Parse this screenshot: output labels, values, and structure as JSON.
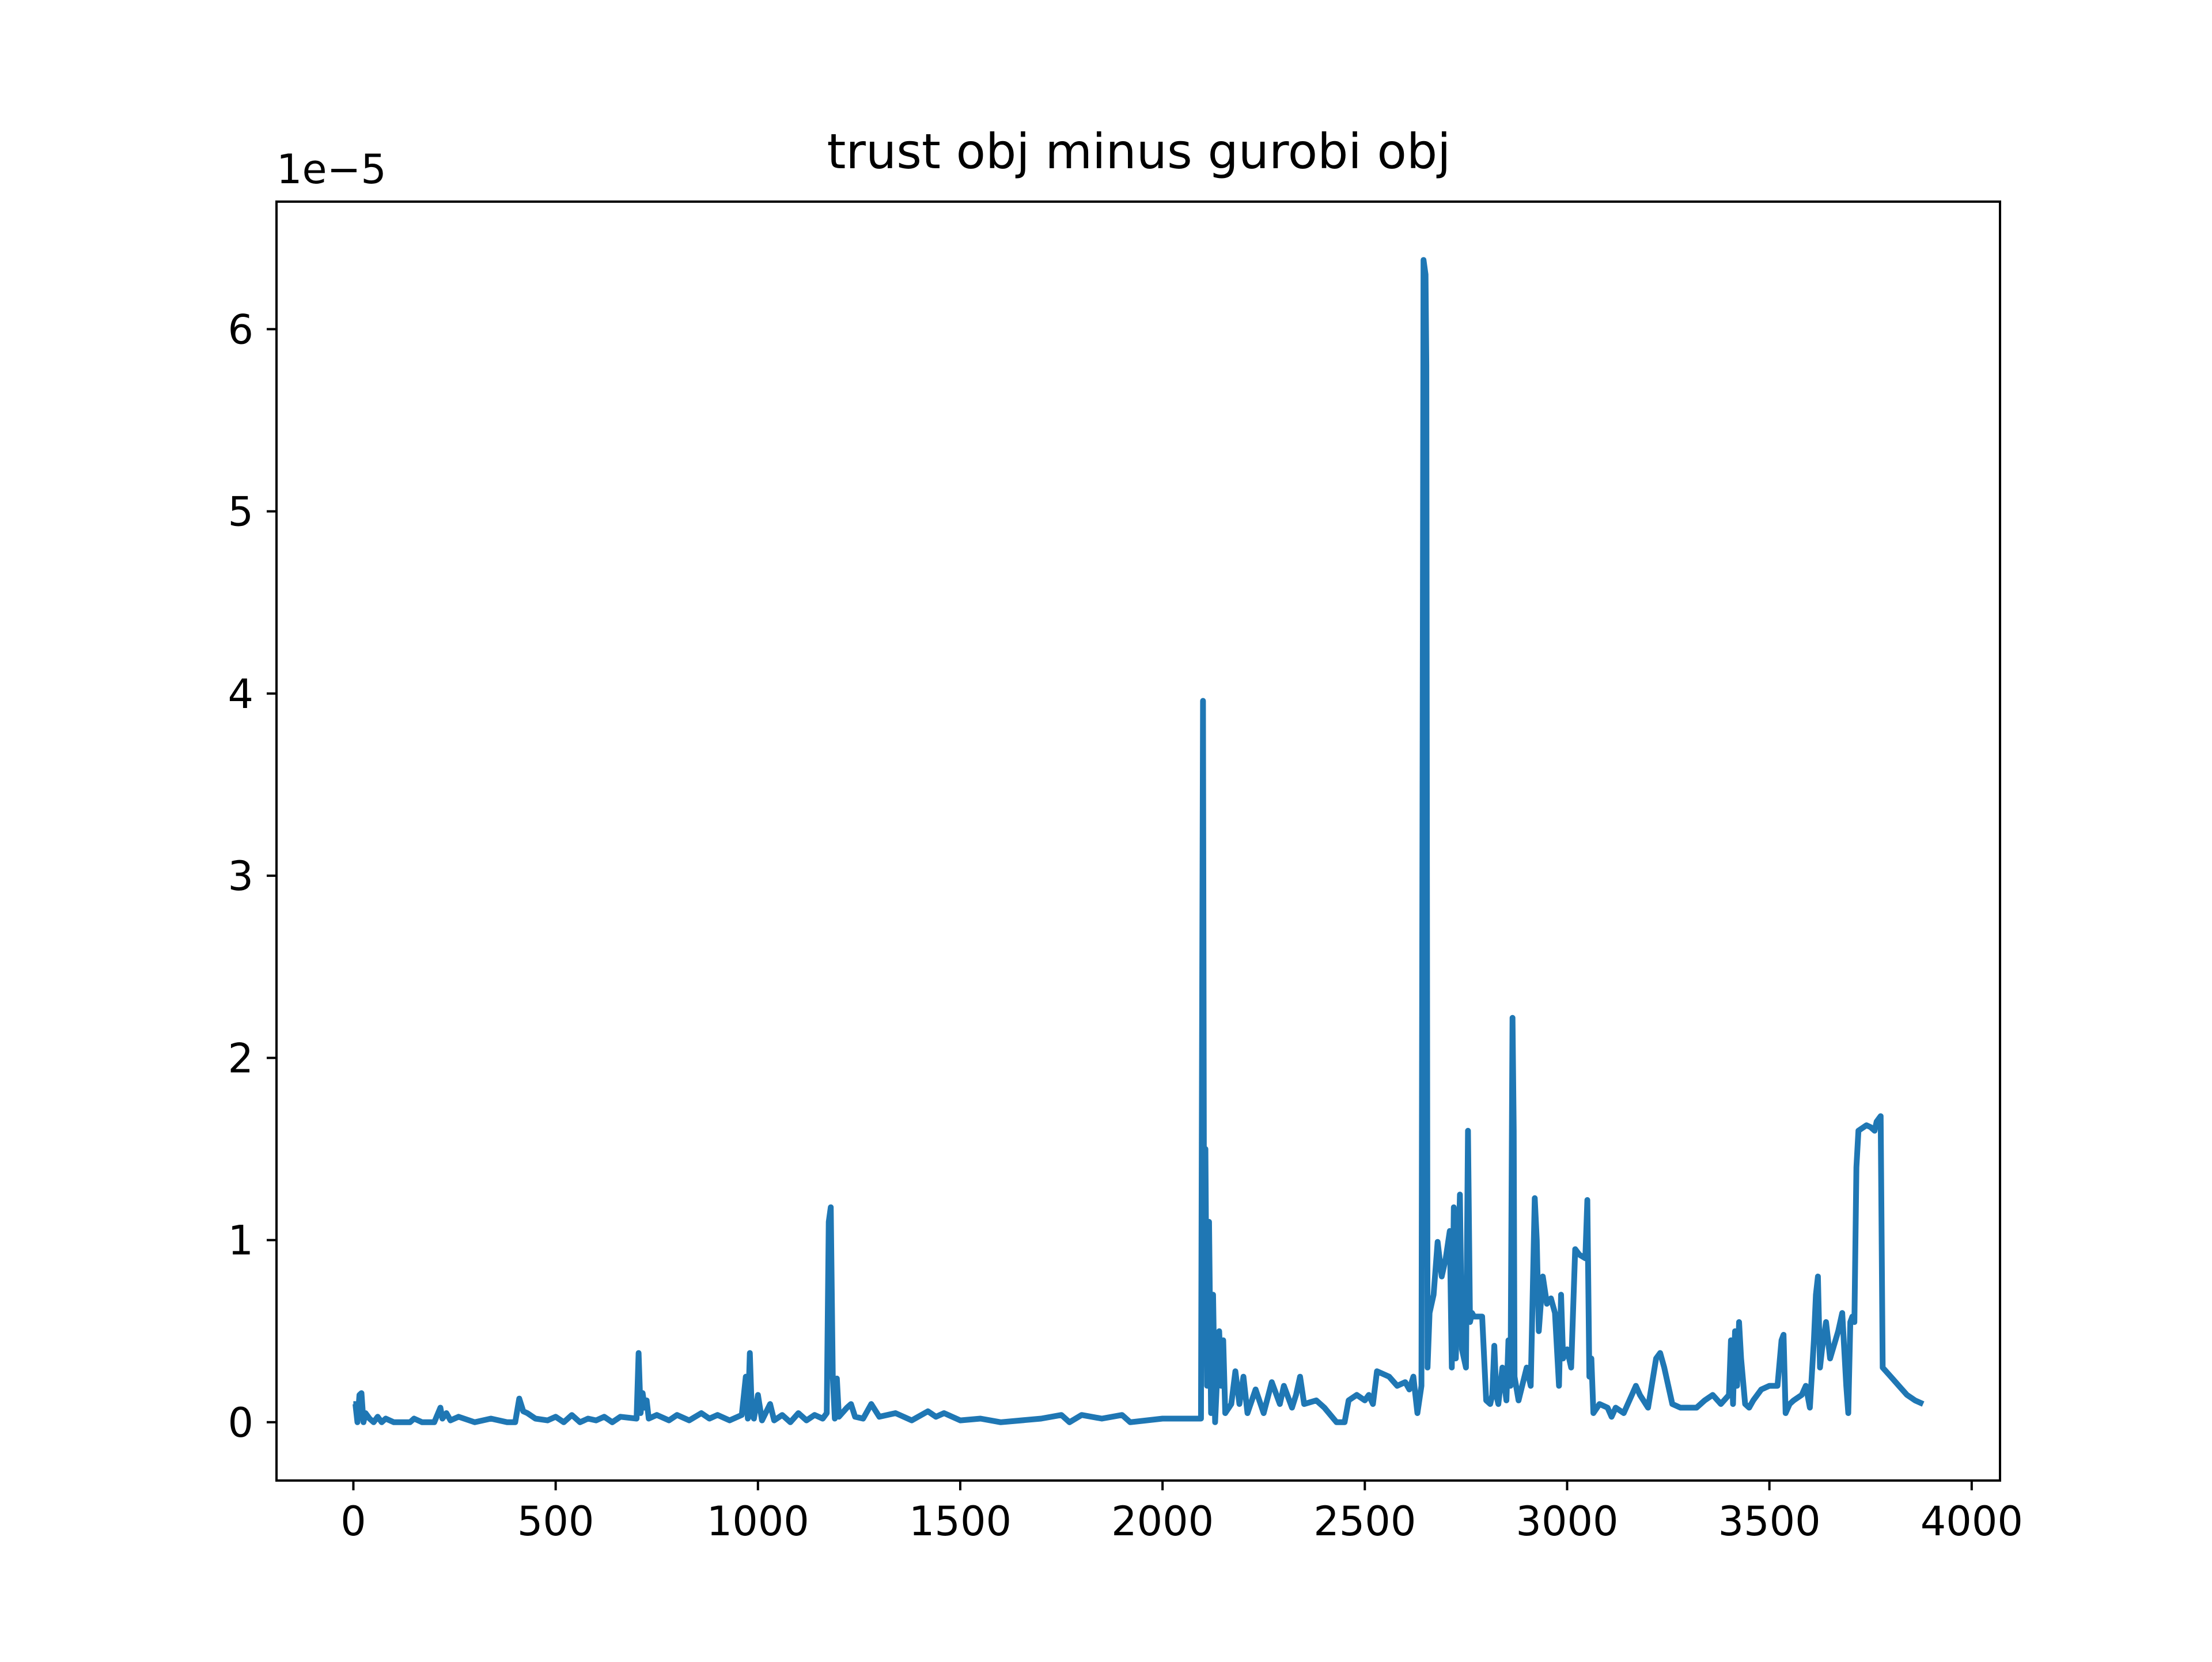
{
  "chart_data": {
    "type": "line",
    "title": "trust obj minus gurobi obj",
    "xlabel": "",
    "ylabel": "",
    "offset_label": "1e−5",
    "y_scale_factor": 1e-05,
    "xlim": [
      -190,
      4070
    ],
    "ylim": [
      -0.32,
      6.7
    ],
    "x_ticks": [
      0,
      500,
      1000,
      1500,
      2000,
      2500,
      3000,
      3500,
      4000
    ],
    "x_tick_labels": [
      "0",
      "500",
      "1000",
      "1500",
      "2000",
      "2500",
      "3000",
      "3500",
      "4000"
    ],
    "y_ticks": [
      0,
      1,
      2,
      3,
      4,
      5,
      6
    ],
    "y_tick_labels": [
      "0",
      "1",
      "2",
      "3",
      "4",
      "5",
      "6"
    ],
    "grid": false,
    "line_color": "#1f77b4",
    "series": [
      {
        "values": [
          [
            0,
            0.1
          ],
          [
            5,
            0.1
          ],
          [
            10,
            0.0
          ],
          [
            15,
            0.15
          ],
          [
            20,
            0.16
          ],
          [
            25,
            0.0
          ],
          [
            30,
            0.05
          ],
          [
            40,
            0.02
          ],
          [
            50,
            0.0
          ],
          [
            60,
            0.03
          ],
          [
            70,
            0.0
          ],
          [
            80,
            0.02
          ],
          [
            100,
            0.0
          ],
          [
            140,
            0.0
          ],
          [
            150,
            0.02
          ],
          [
            170,
            0.0
          ],
          [
            200,
            0.0
          ],
          [
            215,
            0.08
          ],
          [
            220,
            0.02
          ],
          [
            230,
            0.05
          ],
          [
            240,
            0.01
          ],
          [
            260,
            0.03
          ],
          [
            300,
            0.0
          ],
          [
            340,
            0.02
          ],
          [
            380,
            0.0
          ],
          [
            400,
            0.0
          ],
          [
            410,
            0.13
          ],
          [
            420,
            0.06
          ],
          [
            430,
            0.05
          ],
          [
            450,
            0.02
          ],
          [
            480,
            0.01
          ],
          [
            500,
            0.03
          ],
          [
            520,
            0.0
          ],
          [
            540,
            0.04
          ],
          [
            560,
            0.0
          ],
          [
            580,
            0.02
          ],
          [
            600,
            0.01
          ],
          [
            620,
            0.03
          ],
          [
            640,
            0.0
          ],
          [
            660,
            0.03
          ],
          [
            700,
            0.02
          ],
          [
            705,
            0.38
          ],
          [
            710,
            0.05
          ],
          [
            715,
            0.16
          ],
          [
            720,
            0.08
          ],
          [
            725,
            0.12
          ],
          [
            730,
            0.02
          ],
          [
            750,
            0.04
          ],
          [
            780,
            0.01
          ],
          [
            800,
            0.04
          ],
          [
            830,
            0.01
          ],
          [
            860,
            0.05
          ],
          [
            880,
            0.02
          ],
          [
            900,
            0.04
          ],
          [
            930,
            0.01
          ],
          [
            960,
            0.04
          ],
          [
            970,
            0.25
          ],
          [
            975,
            0.02
          ],
          [
            980,
            0.38
          ],
          [
            985,
            0.04
          ],
          [
            990,
            0.02
          ],
          [
            1000,
            0.15
          ],
          [
            1010,
            0.01
          ],
          [
            1030,
            0.1
          ],
          [
            1040,
            0.01
          ],
          [
            1060,
            0.04
          ],
          [
            1080,
            0.0
          ],
          [
            1100,
            0.05
          ],
          [
            1120,
            0.01
          ],
          [
            1140,
            0.04
          ],
          [
            1160,
            0.02
          ],
          [
            1170,
            0.05
          ],
          [
            1175,
            1.1
          ],
          [
            1180,
            1.18
          ],
          [
            1185,
            0.25
          ],
          [
            1190,
            0.02
          ],
          [
            1195,
            0.24
          ],
          [
            1200,
            0.03
          ],
          [
            1220,
            0.08
          ],
          [
            1230,
            0.1
          ],
          [
            1240,
            0.03
          ],
          [
            1260,
            0.02
          ],
          [
            1280,
            0.1
          ],
          [
            1300,
            0.03
          ],
          [
            1340,
            0.05
          ],
          [
            1380,
            0.01
          ],
          [
            1420,
            0.06
          ],
          [
            1440,
            0.03
          ],
          [
            1460,
            0.05
          ],
          [
            1500,
            0.01
          ],
          [
            1550,
            0.02
          ],
          [
            1600,
            0.0
          ],
          [
            1700,
            0.02
          ],
          [
            1750,
            0.04
          ],
          [
            1770,
            0.0
          ],
          [
            1800,
            0.04
          ],
          [
            1850,
            0.02
          ],
          [
            1900,
            0.04
          ],
          [
            1920,
            0.0
          ],
          [
            2000,
            0.02
          ],
          [
            2050,
            0.02
          ],
          [
            2095,
            0.02
          ],
          [
            2100,
            3.96
          ],
          [
            2103,
            0.5
          ],
          [
            2106,
            1.5
          ],
          [
            2110,
            0.2
          ],
          [
            2115,
            1.1
          ],
          [
            2120,
            0.05
          ],
          [
            2125,
            0.7
          ],
          [
            2130,
            0.0
          ],
          [
            2140,
            0.5
          ],
          [
            2145,
            0.2
          ],
          [
            2150,
            0.45
          ],
          [
            2155,
            0.05
          ],
          [
            2170,
            0.1
          ],
          [
            2180,
            0.28
          ],
          [
            2190,
            0.1
          ],
          [
            2200,
            0.25
          ],
          [
            2210,
            0.05
          ],
          [
            2230,
            0.18
          ],
          [
            2250,
            0.05
          ],
          [
            2270,
            0.22
          ],
          [
            2290,
            0.1
          ],
          [
            2300,
            0.2
          ],
          [
            2320,
            0.08
          ],
          [
            2330,
            0.15
          ],
          [
            2340,
            0.25
          ],
          [
            2350,
            0.1
          ],
          [
            2380,
            0.12
          ],
          [
            2400,
            0.08
          ],
          [
            2430,
            0.0
          ],
          [
            2450,
            0.0
          ],
          [
            2460,
            0.12
          ],
          [
            2480,
            0.15
          ],
          [
            2500,
            0.12
          ],
          [
            2510,
            0.15
          ],
          [
            2520,
            0.1
          ],
          [
            2530,
            0.28
          ],
          [
            2560,
            0.25
          ],
          [
            2580,
            0.2
          ],
          [
            2600,
            0.22
          ],
          [
            2610,
            0.18
          ],
          [
            2620,
            0.25
          ],
          [
            2630,
            0.05
          ],
          [
            2640,
            0.2
          ],
          [
            2645,
            6.38
          ],
          [
            2650,
            6.3
          ],
          [
            2652,
            5.8
          ],
          [
            2655,
            0.3
          ],
          [
            2660,
            0.6
          ],
          [
            2670,
            0.7
          ],
          [
            2680,
            0.99
          ],
          [
            2690,
            0.8
          ],
          [
            2700,
            0.9
          ],
          [
            2710,
            1.05
          ],
          [
            2715,
            0.3
          ],
          [
            2720,
            1.18
          ],
          [
            2725,
            0.35
          ],
          [
            2735,
            1.25
          ],
          [
            2740,
            0.4
          ],
          [
            2750,
            0.3
          ],
          [
            2755,
            1.6
          ],
          [
            2760,
            0.55
          ],
          [
            2765,
            0.6
          ],
          [
            2770,
            0.58
          ],
          [
            2790,
            0.58
          ],
          [
            2800,
            0.12
          ],
          [
            2810,
            0.1
          ],
          [
            2815,
            0.15
          ],
          [
            2820,
            0.42
          ],
          [
            2825,
            0.15
          ],
          [
            2830,
            0.1
          ],
          [
            2840,
            0.3
          ],
          [
            2850,
            0.12
          ],
          [
            2855,
            0.45
          ],
          [
            2860,
            0.2
          ],
          [
            2865,
            2.22
          ],
          [
            2868,
            1.6
          ],
          [
            2870,
            0.25
          ],
          [
            2880,
            0.12
          ],
          [
            2900,
            0.3
          ],
          [
            2910,
            0.2
          ],
          [
            2920,
            1.23
          ],
          [
            2925,
            1.0
          ],
          [
            2930,
            0.5
          ],
          [
            2940,
            0.8
          ],
          [
            2950,
            0.65
          ],
          [
            2960,
            0.68
          ],
          [
            2970,
            0.6
          ],
          [
            2980,
            0.2
          ],
          [
            2985,
            0.7
          ],
          [
            2990,
            0.35
          ],
          [
            3000,
            0.4
          ],
          [
            3010,
            0.3
          ],
          [
            3020,
            0.95
          ],
          [
            3030,
            0.92
          ],
          [
            3045,
            0.9
          ],
          [
            3050,
            1.22
          ],
          [
            3055,
            0.25
          ],
          [
            3060,
            0.35
          ],
          [
            3065,
            0.05
          ],
          [
            3080,
            0.1
          ],
          [
            3100,
            0.08
          ],
          [
            3110,
            0.03
          ],
          [
            3120,
            0.08
          ],
          [
            3140,
            0.05
          ],
          [
            3160,
            0.15
          ],
          [
            3170,
            0.2
          ],
          [
            3180,
            0.15
          ],
          [
            3200,
            0.08
          ],
          [
            3220,
            0.35
          ],
          [
            3230,
            0.38
          ],
          [
            3240,
            0.3
          ],
          [
            3260,
            0.1
          ],
          [
            3280,
            0.08
          ],
          [
            3300,
            0.08
          ],
          [
            3320,
            0.08
          ],
          [
            3340,
            0.12
          ],
          [
            3360,
            0.15
          ],
          [
            3380,
            0.1
          ],
          [
            3400,
            0.15
          ],
          [
            3405,
            0.45
          ],
          [
            3410,
            0.1
          ],
          [
            3415,
            0.5
          ],
          [
            3420,
            0.2
          ],
          [
            3425,
            0.55
          ],
          [
            3430,
            0.35
          ],
          [
            3440,
            0.1
          ],
          [
            3450,
            0.08
          ],
          [
            3460,
            0.12
          ],
          [
            3480,
            0.18
          ],
          [
            3500,
            0.2
          ],
          [
            3520,
            0.2
          ],
          [
            3530,
            0.45
          ],
          [
            3535,
            0.48
          ],
          [
            3540,
            0.05
          ],
          [
            3550,
            0.1
          ],
          [
            3560,
            0.12
          ],
          [
            3580,
            0.15
          ],
          [
            3590,
            0.2
          ],
          [
            3600,
            0.08
          ],
          [
            3610,
            0.45
          ],
          [
            3615,
            0.7
          ],
          [
            3620,
            0.8
          ],
          [
            3625,
            0.3
          ],
          [
            3630,
            0.4
          ],
          [
            3640,
            0.55
          ],
          [
            3650,
            0.35
          ],
          [
            3670,
            0.5
          ],
          [
            3680,
            0.6
          ],
          [
            3690,
            0.2
          ],
          [
            3695,
            0.05
          ],
          [
            3700,
            0.55
          ],
          [
            3705,
            0.58
          ],
          [
            3710,
            0.55
          ],
          [
            3715,
            1.4
          ],
          [
            3720,
            1.6
          ],
          [
            3740,
            1.63
          ],
          [
            3750,
            1.62
          ],
          [
            3760,
            1.6
          ],
          [
            3765,
            1.65
          ],
          [
            3775,
            1.68
          ],
          [
            3780,
            0.3
          ],
          [
            3800,
            0.25
          ],
          [
            3820,
            0.2
          ],
          [
            3840,
            0.15
          ],
          [
            3860,
            0.12
          ],
          [
            3880,
            0.1
          ]
        ]
      }
    ]
  }
}
